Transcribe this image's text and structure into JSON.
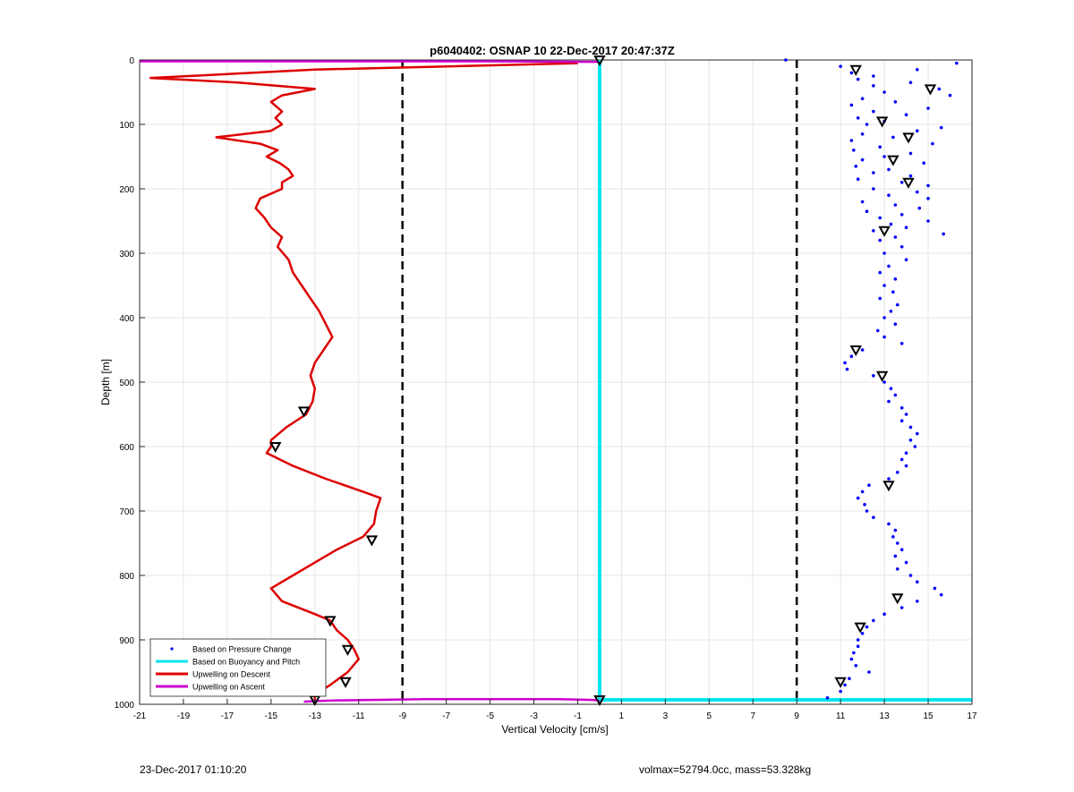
{
  "chart_data": {
    "type": "line",
    "title": "p6040402: OSNAP 10 22-Dec-2017 20:47:37Z",
    "xlabel": "Vertical Velocity [cm/s]",
    "ylabel": "Depth [m]",
    "xlim": [
      -21,
      17
    ],
    "ylim": [
      0,
      1000
    ],
    "y_reversed": true,
    "grid": true,
    "x_ticks": [
      "-21",
      "-19",
      "-17",
      "-15",
      "-13",
      "-11",
      "-9",
      "-7",
      "-5",
      "-3",
      "-1",
      "1",
      "3",
      "5",
      "7",
      "9",
      "11",
      "13",
      "15",
      "17"
    ],
    "y_ticks": [
      "0",
      "100",
      "200",
      "300",
      "400",
      "500",
      "600",
      "700",
      "800",
      "900",
      "1000"
    ],
    "legend_position": "bottom-left",
    "legend": [
      {
        "label": "Based on Pressure Change",
        "style": "dots",
        "color": "#0000ff"
      },
      {
        "label": "Based on Buoyancy and Pitch",
        "style": "line",
        "color": "#00e5ee"
      },
      {
        "label": "Upwelling on Descent",
        "style": "line",
        "color": "#dd0000"
      },
      {
        "label": "Upwelling on Ascent",
        "style": "line",
        "color": "#cc00cc"
      }
    ],
    "reference_lines": [
      {
        "x": -9,
        "style": "dashed",
        "color": "#000000"
      },
      {
        "x": 9,
        "style": "dashed",
        "color": "#000000"
      }
    ],
    "series": [
      {
        "name": "Upwelling on Descent",
        "color": "#dd0000",
        "depth": [
          5,
          15,
          28,
          35,
          45,
          55,
          65,
          80,
          90,
          100,
          110,
          120,
          130,
          140,
          150,
          160,
          170,
          180,
          190,
          200,
          215,
          230,
          245,
          260,
          275,
          290,
          310,
          330,
          350,
          370,
          390,
          410,
          430,
          450,
          470,
          490,
          510,
          530,
          550,
          570,
          590,
          600,
          610,
          630,
          650,
          670,
          680,
          700,
          720,
          740,
          760,
          780,
          800,
          820,
          840,
          860,
          870,
          885,
          900,
          915,
          930,
          950,
          970,
          985,
          993
        ],
        "values": [
          -1,
          -13,
          -20.5,
          -16.5,
          -13,
          -14.5,
          -15,
          -14.5,
          -14.8,
          -14.5,
          -15,
          -17.5,
          -15.5,
          -14.7,
          -15.2,
          -14.6,
          -14.2,
          -14,
          -14.5,
          -14.5,
          -15.5,
          -15.7,
          -15.3,
          -15,
          -14.5,
          -14.7,
          -14.2,
          -14,
          -13.6,
          -13.2,
          -12.8,
          -12.5,
          -12.2,
          -12.6,
          -13,
          -13.2,
          -13,
          -13.1,
          -13.4,
          -14.3,
          -15,
          -15,
          -15.2,
          -14,
          -12.5,
          -10.8,
          -10,
          -10.2,
          -10.3,
          -10.8,
          -12,
          -13,
          -14,
          -15,
          -14.5,
          -13,
          -12.3,
          -12,
          -11.5,
          -11.2,
          -11,
          -11.5,
          -12.3,
          -13,
          -13
        ]
      },
      {
        "name": "Upwelling on Ascent",
        "color": "#cc00cc",
        "depth": [
          996,
          995,
          994,
          993,
          992,
          992,
          992,
          993,
          994,
          3,
          2,
          2,
          2,
          2,
          2
        ],
        "values": [
          -13.5,
          -13,
          -12,
          -10,
          -8,
          -5,
          -2,
          -0.5,
          0,
          0,
          -5,
          -10,
          -15,
          -19,
          -21
        ]
      },
      {
        "name": "Based on Buoyancy and Pitch",
        "color": "#00e5ee",
        "depth": [
          0,
          993
        ],
        "values": [
          0,
          0
        ]
      },
      {
        "name": "Based on Buoyancy and Pitch (ascent)",
        "color": "#00e5ee",
        "depth": [
          993,
          993
        ],
        "values": [
          0,
          17
        ]
      },
      {
        "name": "Based on Pressure Change",
        "color": "#0000ff",
        "depth": [
          0,
          5,
          10,
          15,
          20,
          25,
          30,
          35,
          40,
          45,
          50,
          55,
          60,
          65,
          70,
          75,
          80,
          85,
          90,
          95,
          100,
          105,
          110,
          115,
          120,
          125,
          130,
          135,
          140,
          145,
          150,
          155,
          160,
          165,
          170,
          175,
          180,
          185,
          190,
          195,
          200,
          205,
          210,
          215,
          220,
          225,
          230,
          235,
          240,
          245,
          250,
          255,
          260,
          265,
          270,
          275,
          280,
          290,
          300,
          310,
          320,
          330,
          340,
          350,
          360,
          370,
          380,
          390,
          400,
          410,
          420,
          430,
          440,
          450,
          460,
          470,
          480,
          490,
          500,
          510,
          520,
          530,
          540,
          550,
          560,
          570,
          580,
          590,
          600,
          610,
          620,
          630,
          640,
          650,
          660,
          670,
          680,
          690,
          700,
          710,
          720,
          730,
          740,
          750,
          760,
          770,
          780,
          790,
          800,
          810,
          820,
          830,
          840,
          850,
          860,
          870,
          880,
          890,
          900,
          910,
          920,
          930,
          940,
          950,
          960,
          970,
          980,
          990
        ],
        "values": [
          8.5,
          16.3,
          11,
          14.5,
          11.5,
          12.5,
          11.8,
          14.2,
          12.5,
          15.5,
          13,
          16,
          12,
          13.5,
          11.5,
          15,
          12.5,
          14,
          11.8,
          13,
          12.2,
          15.6,
          14.5,
          12,
          13.4,
          11.5,
          15.2,
          12.8,
          11.6,
          14.2,
          13,
          12,
          14.8,
          11.7,
          13.2,
          12.5,
          14.2,
          11.8,
          13.8,
          15,
          12.5,
          14.5,
          13.2,
          15,
          12,
          13.5,
          14.6,
          12.2,
          13.8,
          12.8,
          15,
          13.3,
          14,
          12.5,
          15.7,
          13.5,
          12.8,
          13.8,
          13,
          14,
          13.2,
          12.8,
          13.5,
          13,
          13.4,
          12.8,
          13.6,
          13.3,
          13,
          13.5,
          12.7,
          13,
          13.8,
          12,
          11.5,
          11.2,
          11.3,
          12.5,
          13,
          13.3,
          13.5,
          13.2,
          13.8,
          14,
          13.8,
          14.2,
          14.5,
          14.2,
          14.4,
          14,
          13.8,
          14,
          13.6,
          13.2,
          12.3,
          12,
          11.8,
          12.1,
          12.2,
          12.5,
          13.2,
          13.5,
          13.4,
          13.6,
          13.8,
          13.5,
          14,
          13.6,
          14.2,
          14.5,
          15.3,
          15.6,
          14.5,
          13.8,
          13,
          12.5,
          12.2,
          12,
          11.8,
          11.8,
          11.6,
          11.5,
          11.7,
          12.3,
          11.4,
          11.2,
          11,
          10.4
        ]
      }
    ],
    "markers": {
      "style": "open-triangle",
      "color": "#000000",
      "depth": [
        15,
        45,
        95,
        120,
        155,
        190,
        265,
        450,
        490,
        545,
        600,
        660,
        745,
        835,
        870,
        880,
        915,
        965,
        965,
        993,
        0,
        993
      ],
      "values": [
        11.7,
        15.1,
        12.9,
        14.1,
        13.4,
        14.1,
        13,
        11.7,
        12.9,
        -13.5,
        -14.8,
        13.2,
        -10.4,
        13.6,
        -12.3,
        11.9,
        -11.5,
        -11.6,
        11,
        -13,
        0,
        0
      ]
    }
  },
  "footer": {
    "left_text": "23-Dec-2017 01:10:20",
    "right_text": "volmax=52794.0cc, mass=53.328kg"
  }
}
